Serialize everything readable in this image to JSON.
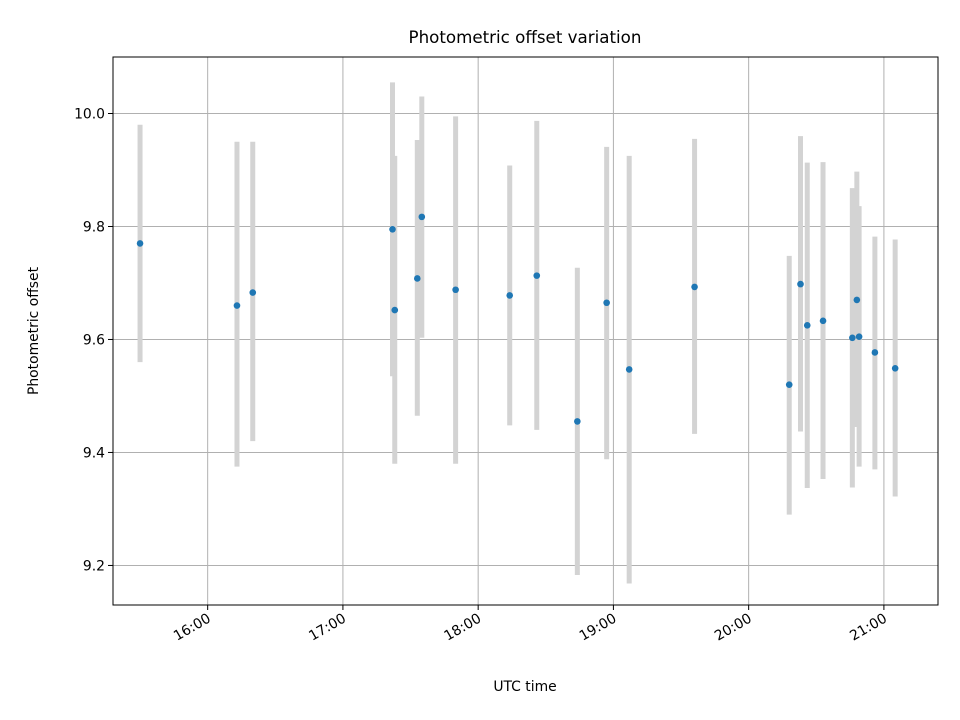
{
  "chart_data": {
    "type": "scatter",
    "title": "Photometric offset variation",
    "xlabel": "UTC time",
    "ylabel": "Photometric offset",
    "x_tick_labels": [
      "16:00",
      "17:00",
      "18:00",
      "19:00",
      "20:00",
      "21:00"
    ],
    "y_tick_labels": [
      "9.2",
      "9.4",
      "9.6",
      "9.8",
      "10.0"
    ],
    "xlim": [
      "15:18",
      "21:24"
    ],
    "ylim": [
      9.13,
      10.1
    ],
    "grid": true,
    "colors": {
      "point": "#1f77b4",
      "error_bar": "#d3d3d3",
      "grid": "#b0b0b0"
    },
    "points": [
      {
        "x": "15:30",
        "y": 9.77,
        "low": 9.56,
        "high": 9.98
      },
      {
        "x": "16:13",
        "y": 9.66,
        "low": 9.375,
        "high": 9.95
      },
      {
        "x": "16:20",
        "y": 9.683,
        "low": 9.42,
        "high": 9.95
      },
      {
        "x": "17:22",
        "y": 9.795,
        "low": 9.535,
        "high": 10.055
      },
      {
        "x": "17:23",
        "y": 9.652,
        "low": 9.38,
        "high": 9.925
      },
      {
        "x": "17:33",
        "y": 9.708,
        "low": 9.465,
        "high": 9.953
      },
      {
        "x": "17:35",
        "y": 9.817,
        "low": 9.603,
        "high": 10.03
      },
      {
        "x": "17:50",
        "y": 9.688,
        "low": 9.38,
        "high": 9.995
      },
      {
        "x": "18:14",
        "y": 9.678,
        "low": 9.448,
        "high": 9.908
      },
      {
        "x": "18:26",
        "y": 9.713,
        "low": 9.44,
        "high": 9.987
      },
      {
        "x": "18:44",
        "y": 9.455,
        "low": 9.183,
        "high": 9.727
      },
      {
        "x": "18:57",
        "y": 9.665,
        "low": 9.388,
        "high": 9.941
      },
      {
        "x": "19:07",
        "y": 9.547,
        "low": 9.168,
        "high": 9.925
      },
      {
        "x": "19:36",
        "y": 9.693,
        "low": 9.433,
        "high": 9.955
      },
      {
        "x": "20:18",
        "y": 9.52,
        "low": 9.29,
        "high": 9.748
      },
      {
        "x": "20:23",
        "y": 9.698,
        "low": 9.437,
        "high": 9.96
      },
      {
        "x": "20:26",
        "y": 9.625,
        "low": 9.337,
        "high": 9.913
      },
      {
        "x": "20:33",
        "y": 9.633,
        "low": 9.353,
        "high": 9.914
      },
      {
        "x": "20:46",
        "y": 9.603,
        "low": 9.338,
        "high": 9.868
      },
      {
        "x": "20:48",
        "y": 9.67,
        "low": 9.445,
        "high": 9.897
      },
      {
        "x": "20:49",
        "y": 9.605,
        "low": 9.375,
        "high": 9.836
      },
      {
        "x": "20:56",
        "y": 9.577,
        "low": 9.37,
        "high": 9.782
      },
      {
        "x": "21:05",
        "y": 9.549,
        "low": 9.322,
        "high": 9.777
      }
    ]
  }
}
